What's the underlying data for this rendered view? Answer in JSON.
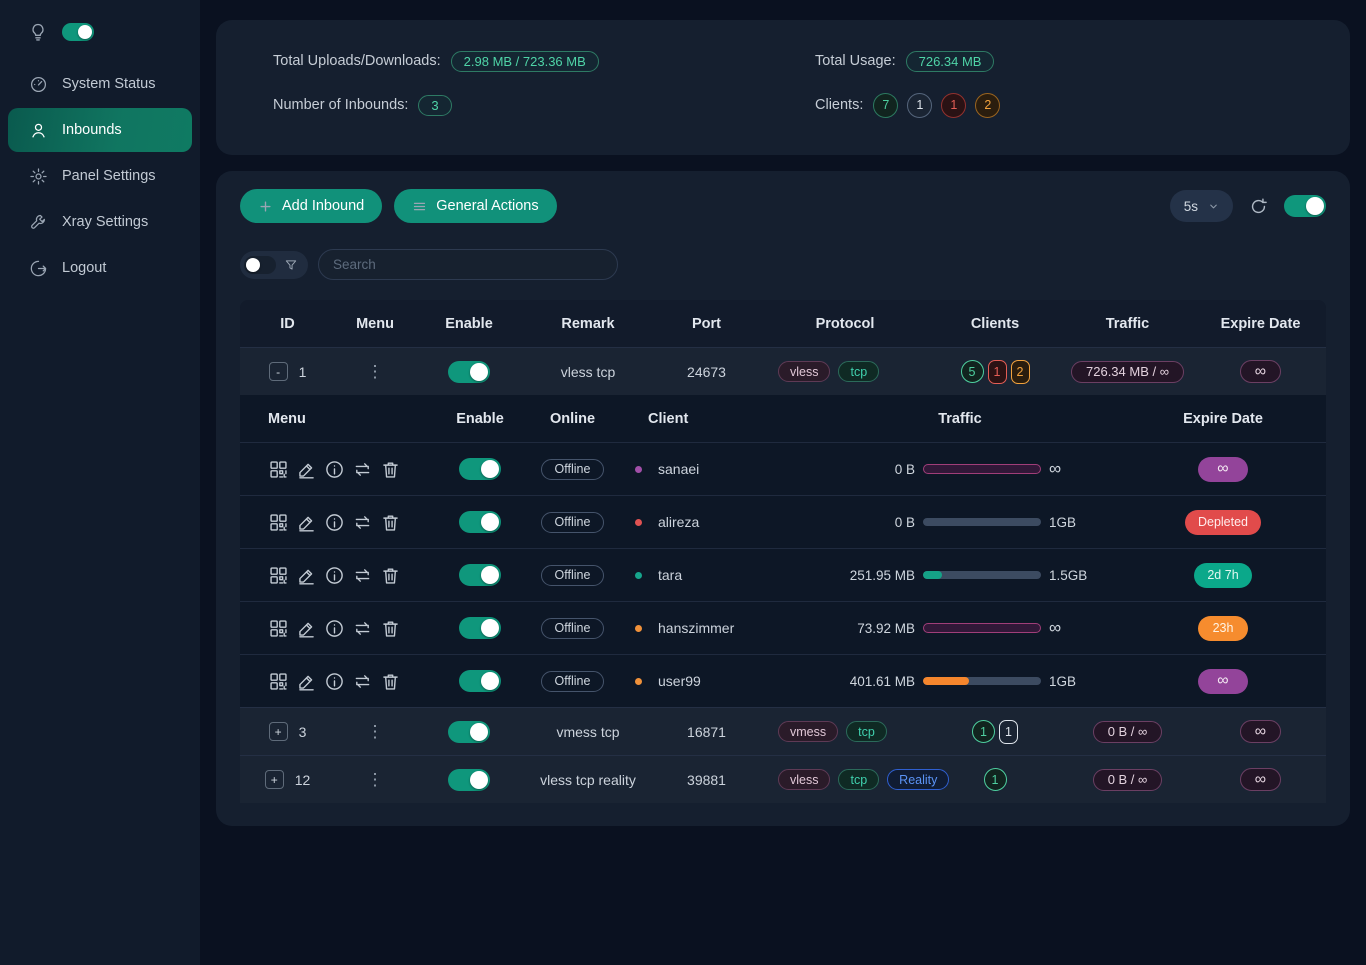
{
  "colors": {
    "accent_green": "#11917a",
    "toggle_on": "#0f977c",
    "badge_purple": "#93449a",
    "badge_red": "#e14b4b",
    "badge_green": "#0ba88a",
    "badge_orange": "#f68c2e",
    "bar_fill_green": "#15a287",
    "bar_fill_orange": "#f5862d",
    "unlimited_bar_border": "#a03e79"
  },
  "sidebar": {
    "theme_toggle_on": true,
    "items": [
      {
        "slug": "system-status",
        "label": "System Status",
        "icon": "dashboard-icon",
        "active": false
      },
      {
        "slug": "inbounds",
        "label": "Inbounds",
        "icon": "user-icon",
        "active": true
      },
      {
        "slug": "panel-settings",
        "label": "Panel Settings",
        "icon": "gear-icon",
        "active": false
      },
      {
        "slug": "xray-settings",
        "label": "Xray Settings",
        "icon": "wrench-icon",
        "active": false
      },
      {
        "slug": "logout",
        "label": "Logout",
        "icon": "logout-icon",
        "active": false
      }
    ]
  },
  "stats": {
    "total_uploads_downloads_label": "Total Uploads/Downloads:",
    "total_uploads_downloads_value": "2.98 MB / 723.36 MB",
    "number_of_inbounds_label": "Number of Inbounds:",
    "number_of_inbounds_value": "3",
    "total_usage_label": "Total Usage:",
    "total_usage_value": "726.34 MB",
    "clients_label": "Clients:",
    "clients_badges": [
      {
        "value": "7",
        "color": "green"
      },
      {
        "value": "1",
        "color": "gray"
      },
      {
        "value": "1",
        "color": "red"
      },
      {
        "value": "2",
        "color": "orange"
      }
    ]
  },
  "toolbar": {
    "add_inbound_label": "Add Inbound",
    "general_actions_label": "General Actions",
    "refresh_interval": "5s",
    "auto_refresh_on": true
  },
  "search": {
    "placeholder": "Search",
    "filter_toggle_on": false
  },
  "table": {
    "headers": [
      "ID",
      "Menu",
      "Enable",
      "Remark",
      "Port",
      "Protocol",
      "Clients",
      "Traffic",
      "Expire Date"
    ],
    "rows": [
      {
        "id": "1",
        "expander": "-",
        "expanded": true,
        "enabled": true,
        "remark": "vless tcp",
        "port": "24673",
        "protocols": [
          {
            "label": "vless",
            "type": "vless"
          },
          {
            "label": "tcp",
            "type": "tcp"
          }
        ],
        "client_badges": [
          {
            "value": "5",
            "color": "green",
            "shape": "circle"
          },
          {
            "value": "1",
            "color": "red",
            "shape": "square"
          },
          {
            "value": "2",
            "color": "orange",
            "shape": "square"
          }
        ],
        "traffic": "726.34 MB / ∞",
        "expire": "∞"
      },
      {
        "id": "3",
        "expander": "+",
        "expanded": false,
        "enabled": true,
        "remark": "vmess tcp",
        "port": "16871",
        "protocols": [
          {
            "label": "vmess",
            "type": "vless"
          },
          {
            "label": "tcp",
            "type": "tcp"
          }
        ],
        "client_badges": [
          {
            "value": "1",
            "color": "green",
            "shape": "circle"
          },
          {
            "value": "1",
            "color": "gray",
            "shape": "square"
          }
        ],
        "traffic": "0 B / ∞",
        "expire": "∞"
      },
      {
        "id": "12",
        "expander": "+",
        "expanded": false,
        "enabled": true,
        "remark": "vless tcp reality",
        "port": "39881",
        "protocols": [
          {
            "label": "vless",
            "type": "vless"
          },
          {
            "label": "tcp",
            "type": "tcp"
          },
          {
            "label": "Reality",
            "type": "reality"
          }
        ],
        "client_badges": [
          {
            "value": "1",
            "color": "green",
            "shape": "circle"
          }
        ],
        "traffic": "0 B / ∞",
        "expire": "∞"
      }
    ]
  },
  "subtable": {
    "headers": [
      "Menu",
      "Enable",
      "Online",
      "Client",
      "Traffic",
      "Expire Date"
    ],
    "menu_actions": [
      "qrcode-icon",
      "edit-icon",
      "info-icon",
      "reset-traffic-icon",
      "delete-icon"
    ],
    "clients": [
      {
        "name": "sanaei",
        "dot_color": "#a14fa8",
        "online": "Offline",
        "enabled": true,
        "used": "0 B",
        "limit": "∞",
        "bar": "unlimited",
        "percent": 0,
        "fill": "",
        "expire_text": "∞",
        "expire_color": "purple"
      },
      {
        "name": "alireza",
        "dot_color": "#e05252",
        "online": "Offline",
        "enabled": true,
        "used": "0 B",
        "limit": "1GB",
        "bar": "normal",
        "percent": 0,
        "fill": "",
        "expire_text": "Depleted",
        "expire_color": "red"
      },
      {
        "name": "tara",
        "dot_color": "#16a58c",
        "online": "Offline",
        "enabled": true,
        "used": "251.95 MB",
        "limit": "1.5GB",
        "bar": "normal",
        "percent": 16,
        "fill": "green",
        "expire_text": "2d 7h",
        "expire_color": "green"
      },
      {
        "name": "hanszimmer",
        "dot_color": "#f0913a",
        "online": "Offline",
        "enabled": true,
        "used": "73.92 MB",
        "limit": "∞",
        "bar": "unlimited",
        "percent": 0,
        "fill": "",
        "expire_text": "23h",
        "expire_color": "orange"
      },
      {
        "name": "user99",
        "dot_color": "#f0913a",
        "online": "Offline",
        "enabled": true,
        "used": "401.61 MB",
        "limit": "1GB",
        "bar": "normal",
        "percent": 39,
        "fill": "orange",
        "expire_text": "∞",
        "expire_color": "purple"
      }
    ]
  }
}
